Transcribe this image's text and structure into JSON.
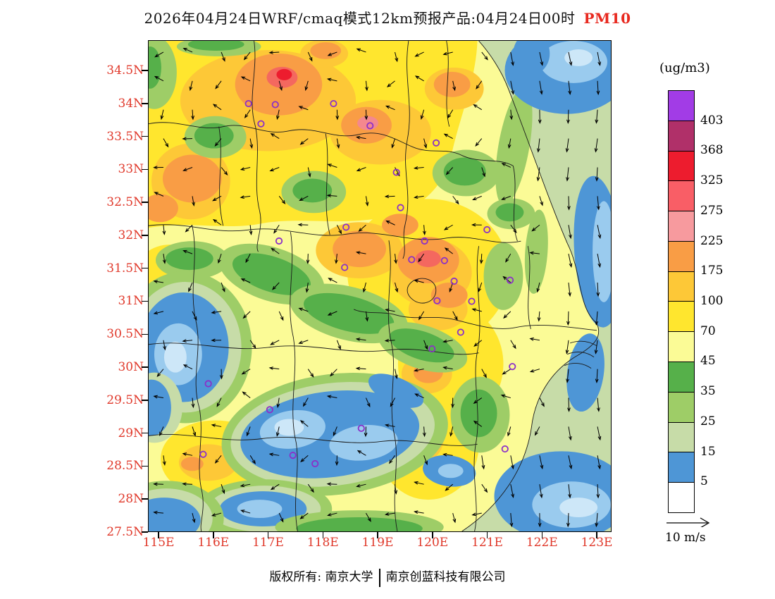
{
  "colors": {
    "axis_red": "#E0392B",
    "species_red": "#E8291F",
    "station_purple": "#8B2FC9",
    "boundary_black": "#1a1a1a"
  },
  "title": {
    "main": "2026年04月24日WRF/cmaq模式12km预报产品:04月24日00时",
    "species": "PM10"
  },
  "units_label": "(ug/m3)",
  "axes": {
    "y": [
      "34.5N",
      "34N",
      "33.5N",
      "33N",
      "32.5N",
      "32N",
      "31.5N",
      "31N",
      "30.5N",
      "30N",
      "29.5N",
      "29N",
      "28.5N",
      "28N",
      "27.5N"
    ],
    "x": [
      "115E",
      "116E",
      "117E",
      "118E",
      "119E",
      "120E",
      "121E",
      "122E",
      "123E"
    ]
  },
  "legend": {
    "cell_colors": [
      "#A23CE6",
      "#B03069",
      "#ED1C2E",
      "#F95E66",
      "#F79A9E",
      "#F99D45",
      "#FDC837",
      "#FFE62E",
      "#FBFB96",
      "#56B04A",
      "#9ECD67",
      "#C7DCA8",
      "#4E96D6",
      "#FFFFFF"
    ],
    "boundary_labels": [
      "403",
      "368",
      "325",
      "275",
      "225",
      "175",
      "100",
      "70",
      "45",
      "35",
      "25",
      "15",
      "5"
    ]
  },
  "wind_ref_label": "10 m/s",
  "footer": {
    "prefix": "版权所有: 南京大学",
    "company": "南京创蓝科技有限公司"
  },
  "stations": [
    [
      0.216,
      0.128
    ],
    [
      0.274,
      0.13
    ],
    [
      0.4,
      0.128
    ],
    [
      0.243,
      0.169
    ],
    [
      0.479,
      0.173
    ],
    [
      0.622,
      0.208
    ],
    [
      0.536,
      0.268
    ],
    [
      0.282,
      0.408
    ],
    [
      0.427,
      0.38
    ],
    [
      0.545,
      0.34
    ],
    [
      0.732,
      0.385
    ],
    [
      0.424,
      0.462
    ],
    [
      0.597,
      0.408
    ],
    [
      0.64,
      0.448
    ],
    [
      0.569,
      0.446
    ],
    [
      0.661,
      0.49
    ],
    [
      0.782,
      0.488
    ],
    [
      0.624,
      0.53
    ],
    [
      0.699,
      0.531
    ],
    [
      0.675,
      0.594
    ],
    [
      0.613,
      0.628
    ],
    [
      0.787,
      0.664
    ],
    [
      0.129,
      0.699
    ],
    [
      0.262,
      0.752
    ],
    [
      0.46,
      0.79
    ],
    [
      0.312,
      0.845
    ],
    [
      0.771,
      0.832
    ],
    [
      0.36,
      0.862
    ],
    [
      0.118,
      0.843
    ]
  ],
  "wind": {
    "cols": 16,
    "rows": 17
  },
  "chart_data": {
    "type": "heatmap",
    "title": "2026年04月24日WRF/cmaq模式12km预报产品:04月24日00时 PM10",
    "variable": "PM10",
    "units": "ug/m3",
    "model": "WRF/cmaq",
    "resolution": "12km",
    "valid_time": "04月24日00时",
    "xlabel_ticks": [
      "115E",
      "116E",
      "117E",
      "118E",
      "119E",
      "120E",
      "121E",
      "122E",
      "123E"
    ],
    "ylabel_ticks": [
      "27.5N",
      "28N",
      "28.5N",
      "29N",
      "29.5N",
      "30N",
      "30.5N",
      "31N",
      "31.5N",
      "32N",
      "32.5N",
      "33N",
      "33.5N",
      "34N",
      "34.5N"
    ],
    "extent": {
      "lon": [
        115,
        123.5
      ],
      "lat": [
        27.5,
        35
      ]
    },
    "levels": [
      5,
      15,
      25,
      35,
      45,
      70,
      100,
      175,
      225,
      275,
      325,
      368,
      403
    ],
    "level_colors_ascending": [
      "#FFFFFF",
      "#4E96D6",
      "#C7DCA8",
      "#9ECD67",
      "#56B04A",
      "#FBFB96",
      "#FFE62E",
      "#FDC837",
      "#F99D45",
      "#F79A9E",
      "#F95E66",
      "#ED1C2E",
      "#B03069",
      "#A23CE6"
    ],
    "wind_reference": "10 m/s",
    "legend_position": "right",
    "notable_features": "High PM10 (100-225 ug/m3, orange/red cores) over northern Anhui/Jiangsu near 117E 34.4N, 118.8E 33.6N and 120E 32N; moderate yellow (45-100) across most land; low PM10 (<25, green/blue) over southern Anhui mountains 116-119E 28.5-30N and offshore East China Sea; wind vectors blow southward over the sea; purple circles mark stations"
  }
}
